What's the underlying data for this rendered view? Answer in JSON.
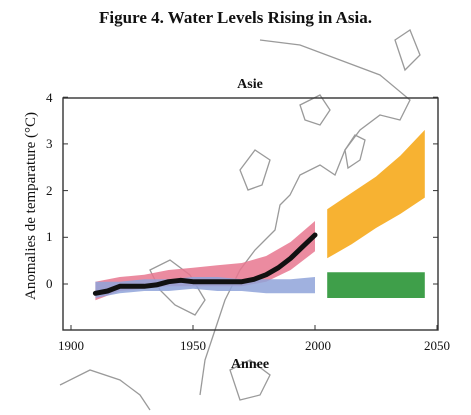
{
  "figure": {
    "title": "Figure 4. Water Levels Rising in Asia."
  },
  "chart_data": {
    "type": "area",
    "title": "Asie",
    "xlabel": "Annee",
    "ylabel": "Anomalies de temparature (°C)",
    "xlim": [
      1900,
      2050
    ],
    "ylim": [
      -1,
      4
    ],
    "x_ticks": [
      "1900",
      "1950",
      "2000",
      "2050"
    ],
    "y_ticks": [
      "4",
      "3",
      "2",
      "1",
      "0"
    ],
    "observed": {
      "x": [
        1910,
        1915,
        1920,
        1925,
        1930,
        1935,
        1940,
        1945,
        1950,
        1955,
        1960,
        1965,
        1970,
        1975,
        1980,
        1985,
        1990,
        1995,
        2000
      ],
      "y": [
        -0.2,
        -0.15,
        -0.05,
        -0.05,
        -0.05,
        -0.02,
        0.05,
        0.08,
        0.05,
        0.05,
        0.05,
        0.05,
        0.05,
        0.1,
        0.2,
        0.35,
        0.55,
        0.8,
        1.05
      ]
    },
    "series": [
      {
        "color": "#e8778f",
        "x": [
          1910,
          1920,
          1930,
          1940,
          1950,
          1960,
          1970,
          1980,
          1990,
          2000
        ],
        "lower": [
          -0.35,
          -0.15,
          -0.1,
          -0.05,
          -0.05,
          -0.05,
          -0.05,
          0.05,
          0.3,
          0.7
        ],
        "upper": [
          0.05,
          0.15,
          0.2,
          0.3,
          0.35,
          0.4,
          0.45,
          0.6,
          0.9,
          1.35
        ]
      },
      {
        "color": "#8fa3d9",
        "x": [
          1910,
          1920,
          1930,
          1940,
          1950,
          1960,
          1970,
          1980,
          1990,
          2000
        ],
        "lower": [
          -0.3,
          -0.2,
          -0.15,
          -0.15,
          -0.1,
          -0.15,
          -0.15,
          -0.2,
          -0.2,
          -0.2
        ],
        "upper": [
          0.05,
          0.05,
          0.1,
          0.1,
          0.15,
          0.15,
          0.1,
          0.1,
          0.1,
          0.15
        ]
      },
      {
        "color": "#f7b232",
        "x": [
          2005,
          2015,
          2025,
          2035,
          2045
        ],
        "lower": [
          0.55,
          0.85,
          1.2,
          1.5,
          1.85
        ],
        "upper": [
          1.6,
          1.95,
          2.3,
          2.75,
          3.3
        ]
      },
      {
        "color": "#3f9f4a",
        "x": [
          2005,
          2045
        ],
        "lower": [
          -0.3,
          -0.3
        ],
        "upper": [
          0.25,
          0.25
        ]
      }
    ]
  }
}
